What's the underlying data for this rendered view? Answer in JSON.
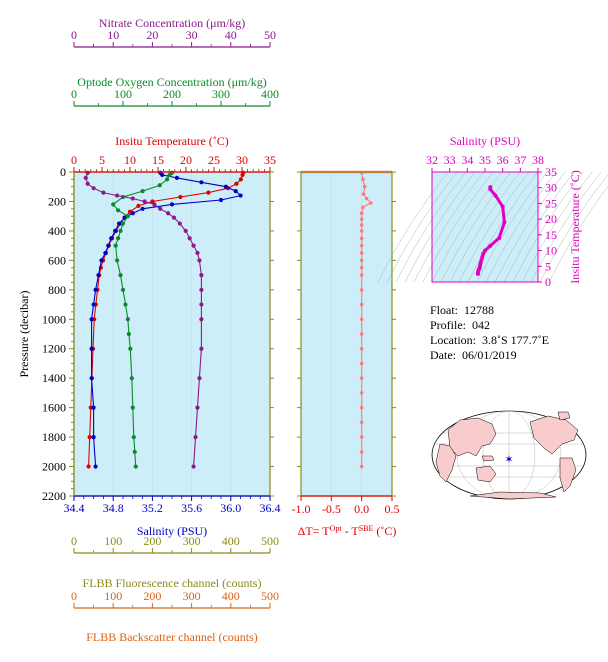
{
  "float_info": {
    "float_label": "Float:",
    "float": "12788",
    "profile_label": "Profile:",
    "profile": "042",
    "location_label": "Location:",
    "location": "3.8˚S  177.7˚E",
    "date_label": "Date:",
    "date": "06/01/2019"
  },
  "colors": {
    "nitrate": "#8b1a8b",
    "oxygen": "#0a8a2a",
    "temperature": "#e00000",
    "salinity": "#0000c8",
    "fluorescence": "#8b8b1a",
    "backscatter": "#e06010",
    "delta_t": "#ff7a7a",
    "ts": "#e000c0",
    "panel_bg": "#cdeef8",
    "land": "#f8cccc"
  },
  "chart_data": [
    {
      "type": "line",
      "name": "profile",
      "ylabel": "Pressure (decibar)",
      "ylim": [
        0,
        2200
      ],
      "yticks": [
        "0",
        "200",
        "400",
        "600",
        "800",
        "1000",
        "1200",
        "1400",
        "1600",
        "1800",
        "2000",
        "2200"
      ],
      "axes": {
        "nitrate": {
          "label": "Nitrate Concentration (μm/kg)",
          "range": [
            0,
            50
          ],
          "ticks": [
            "0",
            "10",
            "20",
            "30",
            "40",
            "50"
          ]
        },
        "oxygen": {
          "label": "Optode Oxygen Concentration (μm/kg)",
          "range": [
            0,
            400
          ],
          "ticks": [
            "0",
            "100",
            "200",
            "300",
            "400"
          ]
        },
        "temperature": {
          "label": "Insitu Temperature (˚C)",
          "range": [
            0,
            35
          ],
          "ticks": [
            "0",
            "5",
            "10",
            "15",
            "20",
            "25",
            "30",
            "35"
          ]
        },
        "salinity": {
          "label": "Salinity (PSU)",
          "range": [
            34.4,
            36.4
          ],
          "ticks": [
            "34.4",
            "34.8",
            "35.2",
            "35.6",
            "36.0",
            "36.4"
          ]
        },
        "fluorescence": {
          "label": "FLBB Fluorescence channel (counts)",
          "range": [
            0,
            500
          ],
          "ticks": [
            "0",
            "100",
            "200",
            "300",
            "400",
            "500"
          ]
        },
        "backscatter": {
          "label": "FLBB Backscatter channel (counts)",
          "range": [
            0,
            500
          ],
          "ticks": [
            "0",
            "100",
            "200",
            "300",
            "400",
            "500"
          ]
        }
      },
      "series": [
        {
          "key": "temperature",
          "x": [
            30.2,
            30.1,
            29.8,
            29.0,
            27.5,
            24.0,
            19.0,
            14.0,
            11.5,
            10.0,
            9.0,
            8.3,
            7.5,
            6.8,
            6.2,
            5.7,
            5.2,
            4.8,
            4.5,
            4.2,
            3.9,
            3.6,
            3.4,
            3.2,
            3.0,
            2.8,
            2.6
          ],
          "p": [
            5,
            20,
            50,
            80,
            110,
            140,
            170,
            200,
            230,
            270,
            310,
            350,
            400,
            450,
            500,
            550,
            600,
            650,
            700,
            800,
            900,
            1000,
            1200,
            1400,
            1600,
            1800,
            2000
          ]
        },
        {
          "key": "salinity",
          "x": [
            35.28,
            35.3,
            35.45,
            35.7,
            35.95,
            36.05,
            36.1,
            35.9,
            35.4,
            35.1,
            35.0,
            34.92,
            34.86,
            34.82,
            34.78,
            34.75,
            34.72,
            34.68,
            34.65,
            34.62,
            34.6,
            34.58,
            34.58,
            34.58,
            34.6,
            34.6,
            34.62
          ],
          "p": [
            5,
            20,
            40,
            70,
            100,
            130,
            160,
            190,
            220,
            250,
            280,
            310,
            350,
            400,
            450,
            500,
            550,
            600,
            700,
            800,
            900,
            1000,
            1200,
            1400,
            1600,
            1800,
            2000
          ]
        },
        {
          "key": "oxygen",
          "x": [
            200,
            195,
            190,
            175,
            140,
            100,
            80,
            90,
            110,
            100,
            95,
            90,
            85,
            88,
            95,
            100,
            105,
            110,
            112,
            115,
            118,
            120,
            122,
            124,
            126
          ],
          "p": [
            5,
            20,
            50,
            90,
            130,
            170,
            220,
            260,
            300,
            350,
            400,
            450,
            500,
            600,
            700,
            800,
            900,
            1000,
            1100,
            1200,
            1400,
            1600,
            1800,
            1900,
            2000
          ]
        },
        {
          "key": "nitrate",
          "x": [
            3.5,
            3.0,
            3.5,
            5.0,
            7.5,
            11,
            15,
            18,
            20.5,
            22,
            24,
            25.5,
            27,
            28.5,
            29.5,
            30.5,
            31.5,
            32,
            32.5,
            32.5,
            32.5,
            32.5,
            32.5,
            32,
            31.5,
            31,
            30.5
          ],
          "p": [
            5,
            40,
            80,
            110,
            140,
            160,
            180,
            200,
            220,
            250,
            280,
            310,
            350,
            400,
            450,
            500,
            550,
            600,
            700,
            800,
            900,
            1000,
            1200,
            1400,
            1600,
            1800,
            2000
          ]
        }
      ]
    },
    {
      "type": "line",
      "name": "delta_t",
      "xlabel": "ΔT= Tᴼᵖᵗ - Tˢᴮᴱ (˚C)",
      "xlabel_base": "ΔT= T",
      "xlabel_sup1": "Opt",
      "xlabel_mid": " - T",
      "xlabel_sup2": "SBE",
      "xlabel_end": " (˚C)",
      "xlim": [
        -1.0,
        0.5
      ],
      "xticks": [
        "-1.0",
        "-0.5",
        "0.0",
        "0.5"
      ],
      "ylim": [
        0,
        2200
      ],
      "x": [
        0.0,
        0.02,
        0.05,
        0.03,
        0.08,
        0.15,
        0.02,
        0.0,
        0.0,
        0.0,
        0.0,
        0.0,
        0.0,
        0.0,
        0.0,
        0.0,
        0.0,
        0.0,
        0.0,
        0.0,
        0.0,
        0.0,
        0.0,
        0.0,
        0.0,
        0.0,
        0.0,
        0.0,
        0.0,
        0.0
      ],
      "p": [
        5,
        50,
        100,
        150,
        180,
        210,
        240,
        280,
        320,
        360,
        400,
        450,
        500,
        550,
        600,
        650,
        700,
        800,
        900,
        1000,
        1100,
        1200,
        1300,
        1400,
        1500,
        1600,
        1700,
        1800,
        1900,
        2000
      ]
    },
    {
      "type": "scatter",
      "name": "ts",
      "xlabel": "Salinity (PSU)",
      "ylabel": "Insitu Temperature (˚C)",
      "xlim": [
        32,
        38
      ],
      "ylim": [
        0,
        35
      ],
      "xticks": [
        "32",
        "33",
        "34",
        "35",
        "36",
        "37",
        "38"
      ],
      "yticks": [
        "0",
        "5",
        "10",
        "15",
        "20",
        "25",
        "30",
        "35"
      ],
      "x": [
        35.3,
        35.3,
        35.6,
        36.0,
        36.1,
        35.8,
        35.3,
        35.0,
        34.9,
        34.85,
        34.8,
        34.75,
        34.72,
        34.7,
        34.65,
        34.62,
        34.6,
        34.6
      ],
      "y": [
        30.2,
        29.5,
        27.5,
        24.0,
        19.0,
        14.0,
        11.5,
        10.0,
        9.0,
        8.0,
        7.0,
        6.0,
        5.2,
        4.5,
        4.0,
        3.5,
        3.0,
        2.6
      ]
    }
  ]
}
